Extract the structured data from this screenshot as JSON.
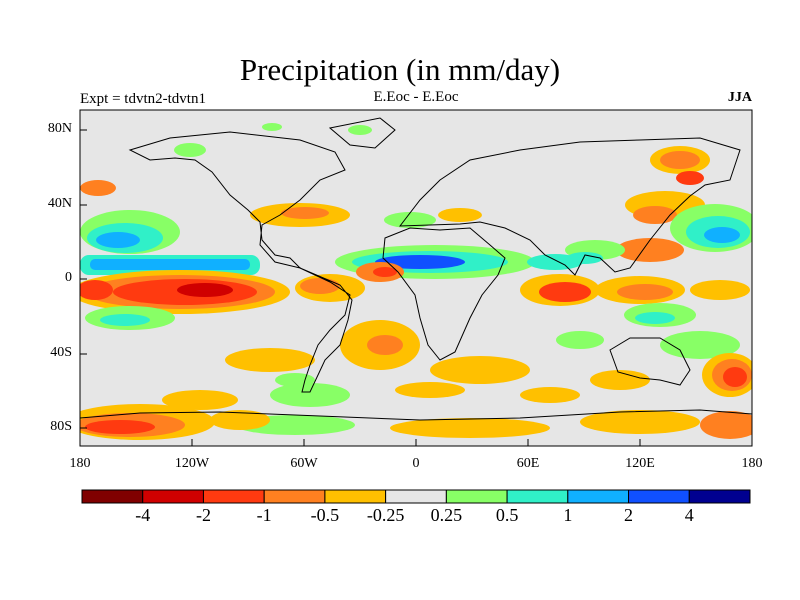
{
  "title": "Precipitation (in mm/day)",
  "subtitle_left": "Expt = tdvtn2-tdvtn1",
  "subtitle_center": "E.Eoc - E.Eoc",
  "subtitle_right": "JJA",
  "y_ticks": [
    "80N",
    "40N",
    "0",
    "40S",
    "80S"
  ],
  "x_ticks": [
    "180",
    "120W",
    "60W",
    "0",
    "60E",
    "120E",
    "180"
  ],
  "colorbar": {
    "colors": [
      "#800000",
      "#d00000",
      "#ff3a10",
      "#ff8020",
      "#ffc000",
      "#e6e6e6",
      "#88ff66",
      "#30f0c8",
      "#10b0ff",
      "#1050ff",
      "#000090"
    ],
    "labels": [
      "-4",
      "-2",
      "-1",
      "-0.5",
      "-0.25",
      "0.25",
      "0.5",
      "1",
      "2",
      "4"
    ]
  }
}
